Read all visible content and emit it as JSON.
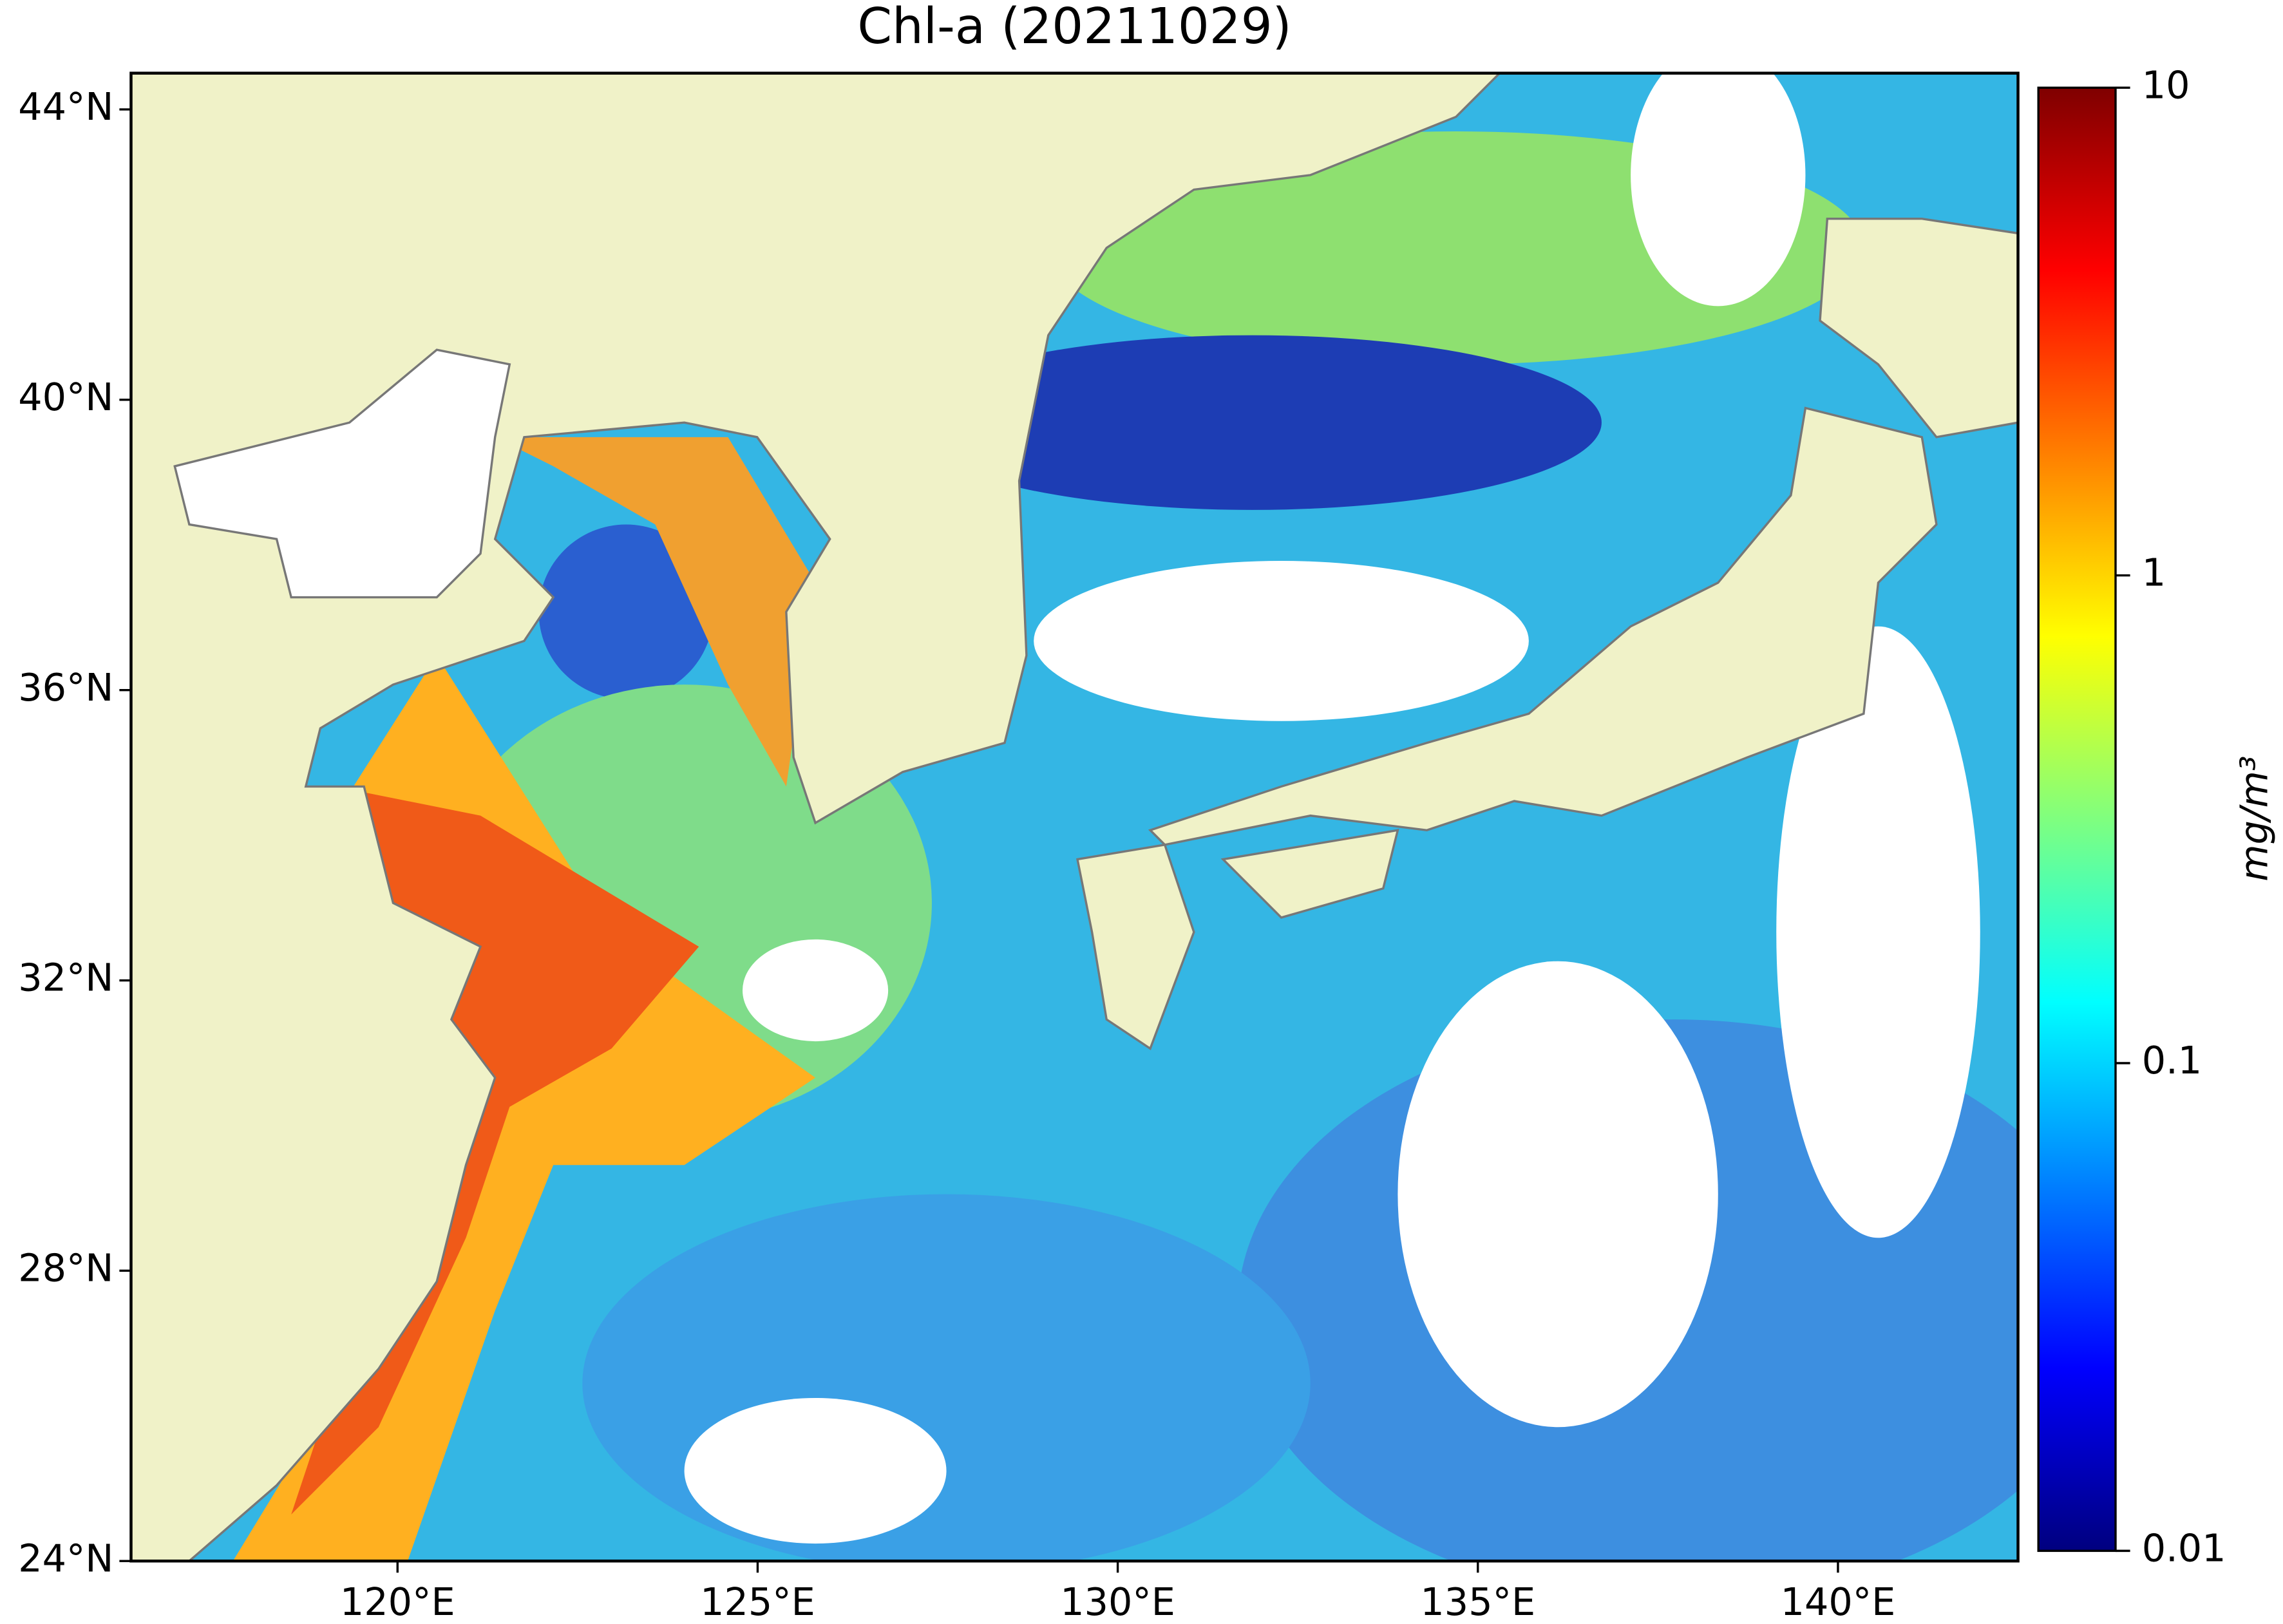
{
  "chart_data": {
    "type": "map",
    "title": "Chl-a (20211029)",
    "xlim": [
      116.3,
      142.5
    ],
    "ylim": [
      24,
      44.5
    ],
    "xticks": [
      {
        "value": 120,
        "label": "120°E"
      },
      {
        "value": 125,
        "label": "125°E"
      },
      {
        "value": 130,
        "label": "130°E"
      },
      {
        "value": 135,
        "label": "135°E"
      },
      {
        "value": 140,
        "label": "140°E"
      }
    ],
    "yticks": [
      {
        "value": 24,
        "label": "24°N"
      },
      {
        "value": 28,
        "label": "28°N"
      },
      {
        "value": 32,
        "label": "32°N"
      },
      {
        "value": 36,
        "label": "36°N"
      },
      {
        "value": 40,
        "label": "40°N"
      },
      {
        "value": 44,
        "label": "44°N"
      }
    ],
    "colorbar": {
      "label": "mg/m³",
      "scale": "log",
      "colormap": "jet",
      "clim": [
        0.01,
        10
      ],
      "ticks": [
        0.01,
        0.1,
        1,
        10
      ]
    }
  }
}
